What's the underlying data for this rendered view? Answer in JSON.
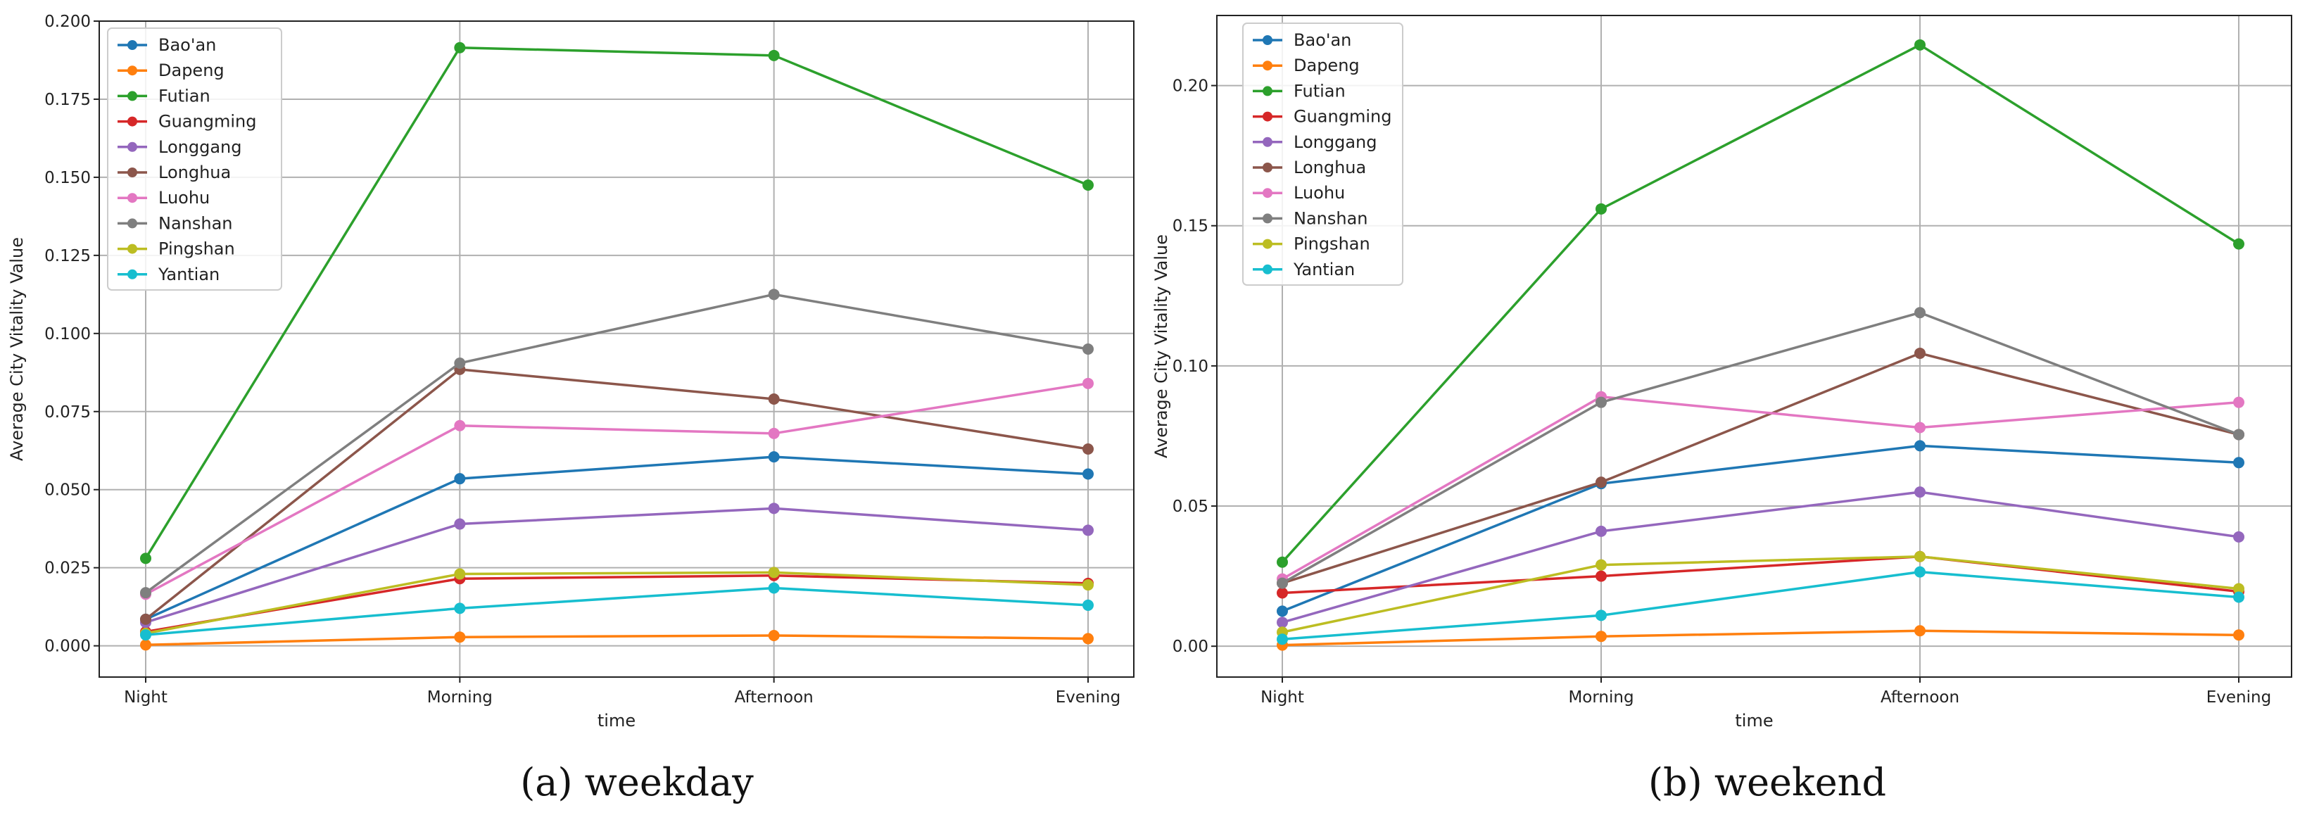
{
  "chart_data": [
    {
      "type": "line",
      "caption": "(a) weekday",
      "xlabel": "time",
      "ylabel": "Average City Vitality Value",
      "categories": [
        "Night",
        "Morning",
        "Afternoon",
        "Evening"
      ],
      "ylim": [
        -0.01,
        0.2
      ],
      "yticks": [
        0.0,
        0.025,
        0.05,
        0.075,
        0.1,
        0.125,
        0.15,
        0.175,
        0.2
      ],
      "ytick_labels": [
        "0.000",
        "0.025",
        "0.050",
        "0.075",
        "0.100",
        "0.125",
        "0.150",
        "0.175",
        "0.200"
      ],
      "grid": true,
      "legend_position": "top-left",
      "series": [
        {
          "name": "Bao'an",
          "color": "#1f77b4",
          "values": [
            0.0085,
            0.0535,
            0.0605,
            0.055
          ]
        },
        {
          "name": "Dapeng",
          "color": "#ff7f0e",
          "values": [
            0.0003,
            0.0028,
            0.0033,
            0.0023
          ]
        },
        {
          "name": "Futian",
          "color": "#2ca02c",
          "values": [
            0.028,
            0.1915,
            0.189,
            0.1475
          ]
        },
        {
          "name": "Guangming",
          "color": "#d62728",
          "values": [
            0.0045,
            0.0215,
            0.0225,
            0.02
          ]
        },
        {
          "name": "Longgang",
          "color": "#9467bd",
          "values": [
            0.0075,
            0.039,
            0.044,
            0.037
          ]
        },
        {
          "name": "Longhua",
          "color": "#8c564b",
          "values": [
            0.0085,
            0.0885,
            0.079,
            0.063
          ]
        },
        {
          "name": "Luohu",
          "color": "#e377c2",
          "values": [
            0.0165,
            0.0705,
            0.068,
            0.084
          ]
        },
        {
          "name": "Nanshan",
          "color": "#7f7f7f",
          "values": [
            0.017,
            0.0905,
            0.1125,
            0.095
          ]
        },
        {
          "name": "Pingshan",
          "color": "#bcbd22",
          "values": [
            0.004,
            0.023,
            0.0235,
            0.0195
          ]
        },
        {
          "name": "Yantian",
          "color": "#17becf",
          "values": [
            0.0035,
            0.012,
            0.0185,
            0.013
          ]
        }
      ]
    },
    {
      "type": "line",
      "caption": "(b) weekend",
      "xlabel": "time",
      "ylabel": "Average City Vitality Value",
      "categories": [
        "Night",
        "Morning",
        "Afternoon",
        "Evening"
      ],
      "ylim": [
        -0.011,
        0.225
      ],
      "yticks": [
        0.0,
        0.05,
        0.1,
        0.15,
        0.2
      ],
      "ytick_labels": [
        "0.00",
        "0.05",
        "0.10",
        "0.15",
        "0.20"
      ],
      "grid": true,
      "legend_position": "top-left",
      "series": [
        {
          "name": "Bao'an",
          "color": "#1f77b4",
          "values": [
            0.0125,
            0.058,
            0.0715,
            0.0655
          ]
        },
        {
          "name": "Dapeng",
          "color": "#ff7f0e",
          "values": [
            0.0004,
            0.0035,
            0.0055,
            0.004
          ]
        },
        {
          "name": "Futian",
          "color": "#2ca02c",
          "values": [
            0.03,
            0.156,
            0.2145,
            0.1435
          ]
        },
        {
          "name": "Guangming",
          "color": "#d62728",
          "values": [
            0.019,
            0.025,
            0.032,
            0.0195
          ]
        },
        {
          "name": "Longgang",
          "color": "#9467bd",
          "values": [
            0.0085,
            0.041,
            0.055,
            0.039
          ]
        },
        {
          "name": "Longhua",
          "color": "#8c564b",
          "values": [
            0.0225,
            0.0585,
            0.1045,
            0.0755
          ]
        },
        {
          "name": "Luohu",
          "color": "#e377c2",
          "values": [
            0.024,
            0.089,
            0.078,
            0.087
          ]
        },
        {
          "name": "Nanshan",
          "color": "#7f7f7f",
          "values": [
            0.0225,
            0.087,
            0.119,
            0.0755
          ]
        },
        {
          "name": "Pingshan",
          "color": "#bcbd22",
          "values": [
            0.005,
            0.029,
            0.032,
            0.0205
          ]
        },
        {
          "name": "Yantian",
          "color": "#17becf",
          "values": [
            0.0025,
            0.011,
            0.0265,
            0.0175
          ]
        }
      ]
    }
  ]
}
